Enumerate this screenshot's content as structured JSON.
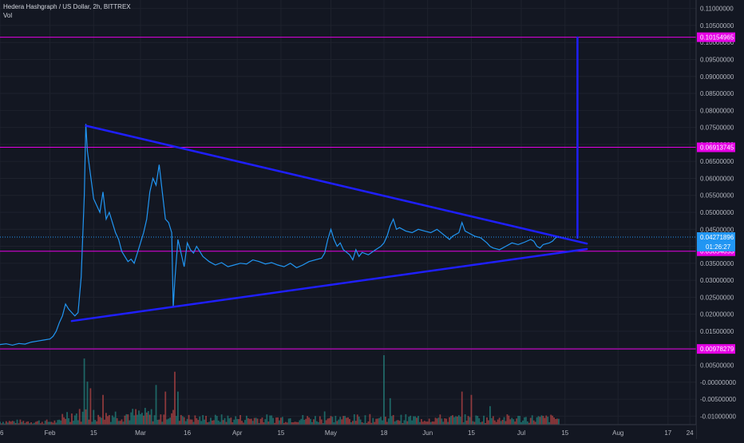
{
  "header": {
    "symbol_line": "Hedera Hashgraph / US Dollar, 2h, BITTREX",
    "volume_label": "Vol"
  },
  "colors": {
    "background": "#131722",
    "grid": "#1e222d",
    "price_line": "#2196f3",
    "trend_line": "#1f1fff",
    "level_line": "#e500e5",
    "label_bg": "#e500e5",
    "current_price_bg": "#2196f3",
    "volume_up": "#26a69a",
    "volume_down": "#ef5350",
    "axis_text": "#b2b5be"
  },
  "chart_data": {
    "type": "line",
    "title": "Hedera Hashgraph / US Dollar, 2h, BITTREX",
    "xlabel": "",
    "ylabel": "",
    "grid": true,
    "y_axis_position": "right",
    "x_ticks": [
      {
        "label": "16",
        "day": 0
      },
      {
        "label": "Feb",
        "day": 16
      },
      {
        "label": "15",
        "day": 30
      },
      {
        "label": "Mar",
        "day": 45
      },
      {
        "label": "16",
        "day": 60
      },
      {
        "label": "Apr",
        "day": 76
      },
      {
        "label": "15",
        "day": 90
      },
      {
        "label": "May",
        "day": 106
      },
      {
        "label": "18",
        "day": 123
      },
      {
        "label": "Jun",
        "day": 137
      },
      {
        "label": "15",
        "day": 151
      },
      {
        "label": "Jul",
        "day": 167
      },
      {
        "label": "15",
        "day": 181
      },
      {
        "label": "Aug",
        "day": 198
      },
      {
        "label": "17",
        "day": 214
      },
      {
        "label": "24",
        "day": 221
      }
    ],
    "y_ticks": [
      "0.11000000",
      "0.10500000",
      "0.10000000",
      "0.09500000",
      "0.09000000",
      "0.08500000",
      "0.08000000",
      "0.07500000",
      "0.07000000",
      "0.06500000",
      "0.06000000",
      "0.05500000",
      "0.05000000",
      "0.04500000",
      "0.04000000",
      "0.03500000",
      "0.03000000",
      "0.02500000",
      "0.02000000",
      "0.01500000",
      "0.01000000",
      "0.00500000",
      "-0.00000000",
      "-0.00500000",
      "-0.01000000"
    ],
    "ylim": [
      -0.0125,
      0.1125
    ],
    "xlim": [
      0,
      223
    ],
    "series": [
      {
        "points": [
          [
            0,
            0.0111
          ],
          [
            2,
            0.0113
          ],
          [
            4,
            0.0109
          ],
          [
            6,
            0.0114
          ],
          [
            8,
            0.0112
          ],
          [
            10,
            0.0118
          ],
          [
            12,
            0.0121
          ],
          [
            14,
            0.0124
          ],
          [
            16,
            0.0127
          ],
          [
            17,
            0.0135
          ],
          [
            18,
            0.015
          ],
          [
            19,
            0.0175
          ],
          [
            20,
            0.0195
          ],
          [
            21,
            0.023
          ],
          [
            22,
            0.0215
          ],
          [
            23,
            0.0205
          ],
          [
            24,
            0.0195
          ],
          [
            25,
            0.0205
          ],
          [
            26,
            0.031
          ],
          [
            27,
            0.055
          ],
          [
            27.5,
            0.076
          ],
          [
            28,
            0.068
          ],
          [
            29,
            0.061
          ],
          [
            30,
            0.054
          ],
          [
            31,
            0.052
          ],
          [
            32,
            0.05
          ],
          [
            33,
            0.056
          ],
          [
            34,
            0.048
          ],
          [
            35,
            0.05
          ],
          [
            36,
            0.047
          ],
          [
            37,
            0.044
          ],
          [
            38,
            0.042
          ],
          [
            39,
            0.0385
          ],
          [
            40,
            0.037
          ],
          [
            41,
            0.0355
          ],
          [
            42,
            0.0362
          ],
          [
            43,
            0.035
          ],
          [
            44,
            0.038
          ],
          [
            45,
            0.041
          ],
          [
            46,
            0.044
          ],
          [
            47,
            0.048
          ],
          [
            48,
            0.056
          ],
          [
            49,
            0.06
          ],
          [
            50,
            0.058
          ],
          [
            51,
            0.064
          ],
          [
            52,
            0.056
          ],
          [
            53,
            0.048
          ],
          [
            54,
            0.047
          ],
          [
            55,
            0.044
          ],
          [
            55.5,
            0.022
          ],
          [
            56,
            0.03
          ],
          [
            57,
            0.042
          ],
          [
            58,
            0.038
          ],
          [
            59,
            0.034
          ],
          [
            60,
            0.041
          ],
          [
            61,
            0.039
          ],
          [
            62,
            0.038
          ],
          [
            63,
            0.04
          ],
          [
            65,
            0.037
          ],
          [
            67,
            0.0355
          ],
          [
            69,
            0.0345
          ],
          [
            71,
            0.0352
          ],
          [
            73,
            0.034
          ],
          [
            75,
            0.0345
          ],
          [
            77,
            0.035
          ],
          [
            79,
            0.0348
          ],
          [
            81,
            0.036
          ],
          [
            83,
            0.0355
          ],
          [
            85,
            0.0348
          ],
          [
            87,
            0.0352
          ],
          [
            89,
            0.0345
          ],
          [
            91,
            0.034
          ],
          [
            93,
            0.035
          ],
          [
            95,
            0.0337
          ],
          [
            97,
            0.0345
          ],
          [
            99,
            0.0355
          ],
          [
            101,
            0.036
          ],
          [
            103,
            0.0365
          ],
          [
            104,
            0.038
          ],
          [
            105,
            0.042
          ],
          [
            106,
            0.045
          ],
          [
            107,
            0.042
          ],
          [
            108,
            0.04
          ],
          [
            109,
            0.041
          ],
          [
            110,
            0.039
          ],
          [
            112,
            0.0375
          ],
          [
            113,
            0.036
          ],
          [
            114,
            0.039
          ],
          [
            115,
            0.037
          ],
          [
            116,
            0.0382
          ],
          [
            118,
            0.0375
          ],
          [
            120,
            0.0388
          ],
          [
            122,
            0.04
          ],
          [
            123,
            0.041
          ],
          [
            124,
            0.043
          ],
          [
            125,
            0.046
          ],
          [
            126,
            0.048
          ],
          [
            127,
            0.045
          ],
          [
            128,
            0.0455
          ],
          [
            130,
            0.0445
          ],
          [
            132,
            0.044
          ],
          [
            134,
            0.045
          ],
          [
            136,
            0.0445
          ],
          [
            138,
            0.044
          ],
          [
            140,
            0.045
          ],
          [
            142,
            0.0435
          ],
          [
            144,
            0.042
          ],
          [
            145,
            0.043
          ],
          [
            147,
            0.044
          ],
          [
            148,
            0.047
          ],
          [
            149,
            0.0445
          ],
          [
            150,
            0.044
          ],
          [
            152,
            0.043
          ],
          [
            154,
            0.0425
          ],
          [
            156,
            0.041
          ],
          [
            157,
            0.04
          ],
          [
            158,
            0.0395
          ],
          [
            160,
            0.039
          ],
          [
            162,
            0.04
          ],
          [
            164,
            0.041
          ],
          [
            166,
            0.0405
          ],
          [
            168,
            0.0412
          ],
          [
            170,
            0.042
          ],
          [
            171,
            0.0415
          ],
          [
            172,
            0.04
          ],
          [
            173,
            0.0395
          ],
          [
            174,
            0.0405
          ],
          [
            176,
            0.041
          ],
          [
            177,
            0.0415
          ],
          [
            178,
            0.0425
          ],
          [
            179,
            0.0428
          ]
        ]
      }
    ],
    "trend_lines": [
      {
        "from": [
          27.5,
          0.0755
        ],
        "to": [
          188,
          0.0408
        ]
      },
      {
        "from": [
          23,
          0.018
        ],
        "to": [
          188,
          0.0392
        ]
      },
      {
        "from": [
          185,
          0.0425
        ],
        "to": [
          185,
          0.1015
        ]
      }
    ],
    "horizontal_levels": [
      {
        "value": 0.10154965,
        "label": "0.10154965"
      },
      {
        "value": 0.06913745,
        "label": "0.06913745"
      },
      {
        "value": 0.03854853,
        "label": "0.03854853"
      },
      {
        "value": 0.00978279,
        "label": "0.00978279"
      }
    ],
    "current_price": {
      "value": 0.04271896,
      "label": "0.04271896",
      "countdown": "01:26:27"
    },
    "volume": {
      "approx_max": 0.0105,
      "spikes": [
        [
          27,
          0.01
        ],
        [
          28,
          0.0065
        ],
        [
          29,
          0.0055
        ],
        [
          33,
          0.0045
        ],
        [
          50,
          0.006
        ],
        [
          53,
          0.005
        ],
        [
          56,
          0.008
        ],
        [
          57,
          0.005
        ],
        [
          104,
          0.002
        ],
        [
          123,
          0.0105
        ],
        [
          125,
          0.004
        ],
        [
          148,
          0.005
        ],
        [
          151,
          0.0045
        ],
        [
          157,
          0.0028
        ]
      ]
    }
  }
}
